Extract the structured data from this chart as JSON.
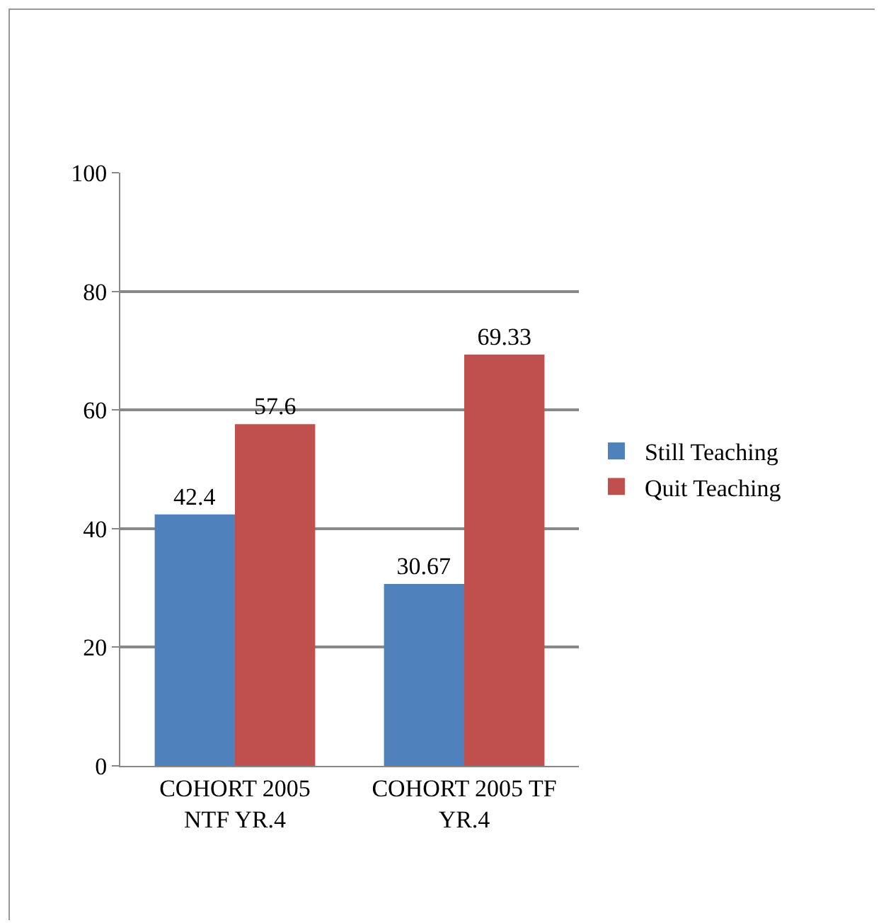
{
  "chart_data": {
    "type": "bar",
    "categories": [
      "COHORT 2005 NTF YR.4",
      "COHORT 2005 TF YR.4"
    ],
    "series": [
      {
        "name": "Still Teaching",
        "color": "#4f81bd",
        "values": [
          42.4,
          30.67
        ]
      },
      {
        "name": "Quit Teaching",
        "color": "#c0504d",
        "values": [
          57.6,
          69.33
        ]
      }
    ],
    "ylim": [
      0,
      100
    ],
    "yticks": [
      0,
      20,
      40,
      60,
      80,
      100
    ],
    "grid": "y",
    "legend": "right",
    "data_labels": true
  }
}
